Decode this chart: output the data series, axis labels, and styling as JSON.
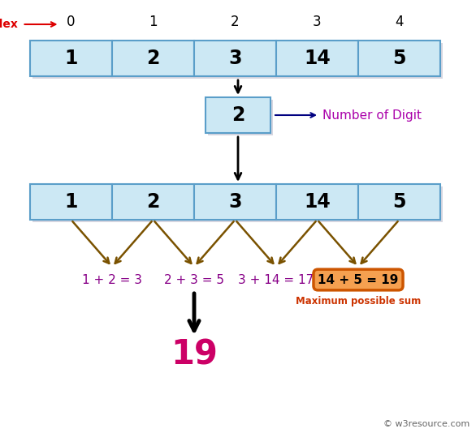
{
  "array_values": [
    1,
    2,
    3,
    14,
    5
  ],
  "array_indices": [
    "0",
    "1",
    "2",
    "3",
    "4"
  ],
  "k": 2,
  "result": 19,
  "box_fill_color": "#cce8f4",
  "box_edge_color": "#5a9ec9",
  "arrow_color": "#7a5200",
  "index_label_color": "#dd0000",
  "k_label_color": "#aa00aa",
  "sum_eq_color": "#880088",
  "sum_result_color": "#ee4400",
  "result_color": "#cc0066",
  "highlight_box_color": "#f5a050",
  "highlight_box_edge": "#cc5500",
  "sums": [
    "1 + 2 = 3",
    "2 + 3 = 5",
    "3 + 14 = 17",
    "14 + 5 = 19"
  ],
  "sum_highlight_index": 3,
  "watermark": "© w3resource.com",
  "number_of_digit_label": "Number of Digit",
  "figw": 5.86,
  "figh": 5.34,
  "dpi": 100
}
